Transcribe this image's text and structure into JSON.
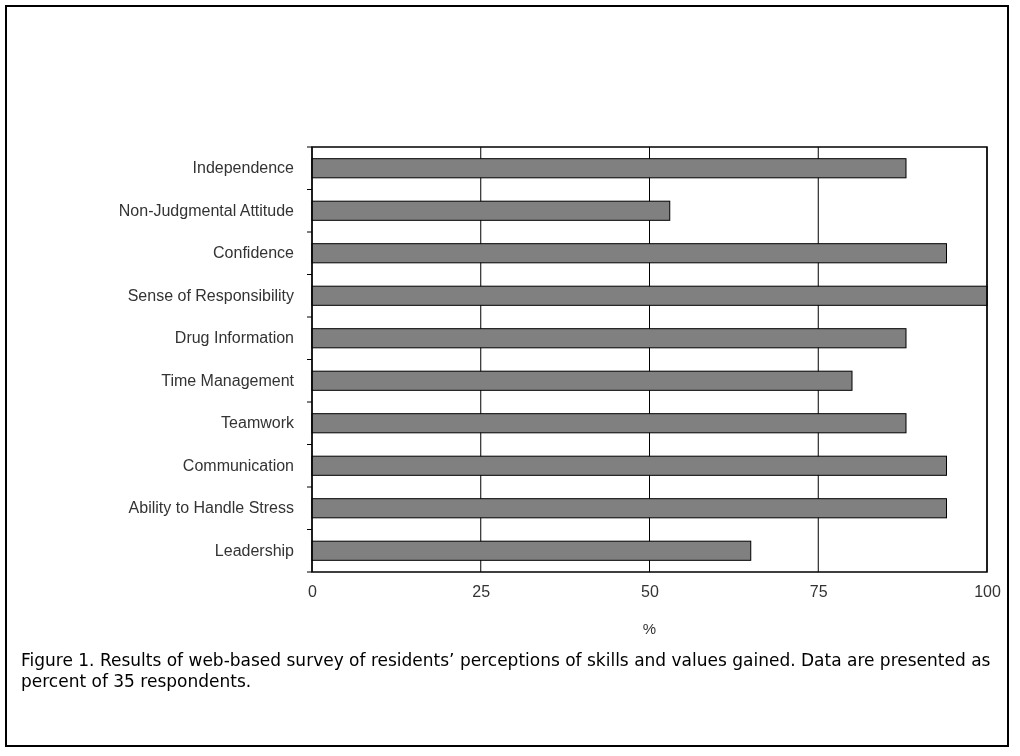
{
  "chart_data": {
    "type": "bar",
    "orientation": "horizontal",
    "xlabel": "%",
    "categories": [
      "Independence",
      "Non-Judgmental Attitude",
      "Confidence",
      "Sense of Responsibility",
      "Drug Information",
      "Time Management",
      "Teamwork",
      "Communication",
      "Ability to Handle Stress",
      "Leadership"
    ],
    "values": [
      88,
      53,
      94,
      100,
      88,
      80,
      88,
      94,
      94,
      65
    ],
    "color": "#808080",
    "xlim": [
      0,
      100
    ],
    "xticks": [
      0,
      25,
      50,
      75,
      100
    ],
    "grid": "x",
    "annotations": [
      "Figure 1. Results of web-based survey of residents’ perceptions of skills and values gained. Data are presented as percent of 35 respondents."
    ]
  }
}
